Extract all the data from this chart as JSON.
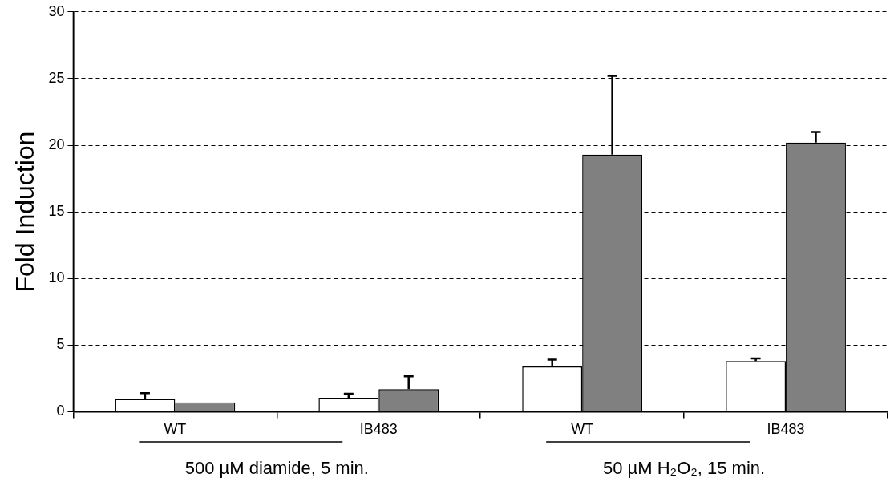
{
  "chart_data": {
    "type": "bar",
    "ylabel": "Fold Induction",
    "categories": [
      "WT",
      "IB483",
      "WT",
      "IB483"
    ],
    "series": [
      {
        "color": "#ffffff",
        "values": [
          0.95,
          1.05,
          3.4,
          3.8
        ],
        "errors": [
          [
            0.95,
            1.4
          ],
          [
            1.05,
            1.35
          ],
          [
            3.4,
            3.9
          ],
          [
            3.8,
            4.0
          ]
        ]
      },
      {
        "color": "#808080",
        "values": [
          0.7,
          1.7,
          19.3,
          20.2
        ],
        "errors": [
          null,
          [
            1.7,
            2.65
          ],
          [
            19.3,
            25.2
          ],
          [
            20.2,
            21.0
          ]
        ]
      }
    ],
    "ylim": [
      0,
      30
    ],
    "yticks": [
      0,
      5,
      10,
      15,
      20,
      25,
      30
    ],
    "grid": "y",
    "legend": false,
    "annotations": [
      "500 µM diamide, 5 min.",
      "50 µM H₂O₂, 15 min."
    ]
  }
}
